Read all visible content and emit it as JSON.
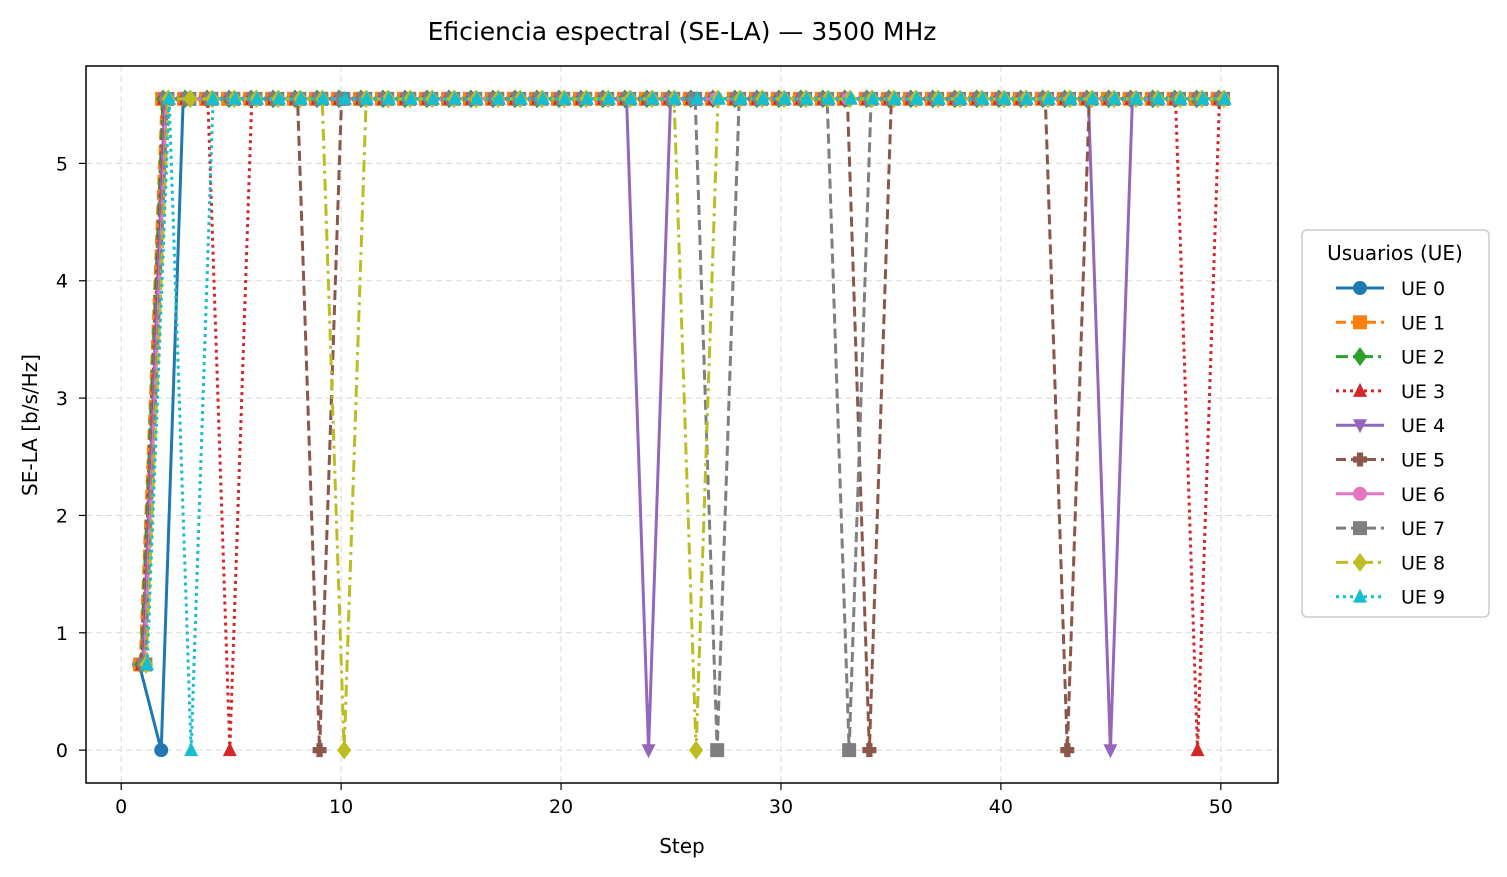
{
  "chart_data": {
    "type": "line",
    "title": "Eficiencia espectral (SE-LA) — 3500 MHz",
    "xlabel": "Step",
    "ylabel": "SE-LA [b/s/Hz]",
    "xlim": [
      -1.6,
      52.6
    ],
    "ylim": [
      -0.28,
      5.83
    ],
    "xticks": [
      0,
      10,
      20,
      30,
      40,
      50
    ],
    "yticks": [
      0,
      1,
      2,
      3,
      4,
      5
    ],
    "grid": true,
    "legend": {
      "title": "Usuarios (UE)",
      "placement": "center-right outside"
    },
    "high_value": 5.55,
    "initial_value": 0.73,
    "steps": [
      1,
      50
    ],
    "series": [
      {
        "name": "UE 0",
        "color": "#1f77b4",
        "marker": "circle",
        "linestyle": "solid",
        "zero_steps": [
          2
        ]
      },
      {
        "name": "UE 1",
        "color": "#ff7f0e",
        "marker": "square",
        "linestyle": "dashed",
        "zero_steps": []
      },
      {
        "name": "UE 2",
        "color": "#2ca02c",
        "marker": "diamond",
        "linestyle": "dashdot",
        "zero_steps": []
      },
      {
        "name": "UE 3",
        "color": "#d62728",
        "marker": "triangle-up",
        "linestyle": "dotted",
        "zero_steps": [
          5,
          49
        ]
      },
      {
        "name": "UE 4",
        "color": "#9467bd",
        "marker": "triangle-down",
        "linestyle": "solid",
        "zero_steps": [
          24,
          45
        ]
      },
      {
        "name": "UE 5",
        "color": "#8c564b",
        "marker": "plus",
        "linestyle": "dashed",
        "zero_steps": [
          9,
          34,
          43
        ]
      },
      {
        "name": "UE 6",
        "color": "#e377c2",
        "marker": "circle",
        "linestyle": "solid",
        "zero_steps": []
      },
      {
        "name": "UE 7",
        "color": "#7f7f7f",
        "marker": "square",
        "linestyle": "dashed",
        "zero_steps": [
          27,
          33
        ]
      },
      {
        "name": "UE 8",
        "color": "#bcbd22",
        "marker": "diamond",
        "linestyle": "dashdot",
        "zero_steps": [
          10,
          26
        ]
      },
      {
        "name": "UE 9",
        "color": "#17becf",
        "marker": "triangle-up",
        "linestyle": "dotted",
        "zero_steps": [
          3
        ]
      }
    ]
  }
}
